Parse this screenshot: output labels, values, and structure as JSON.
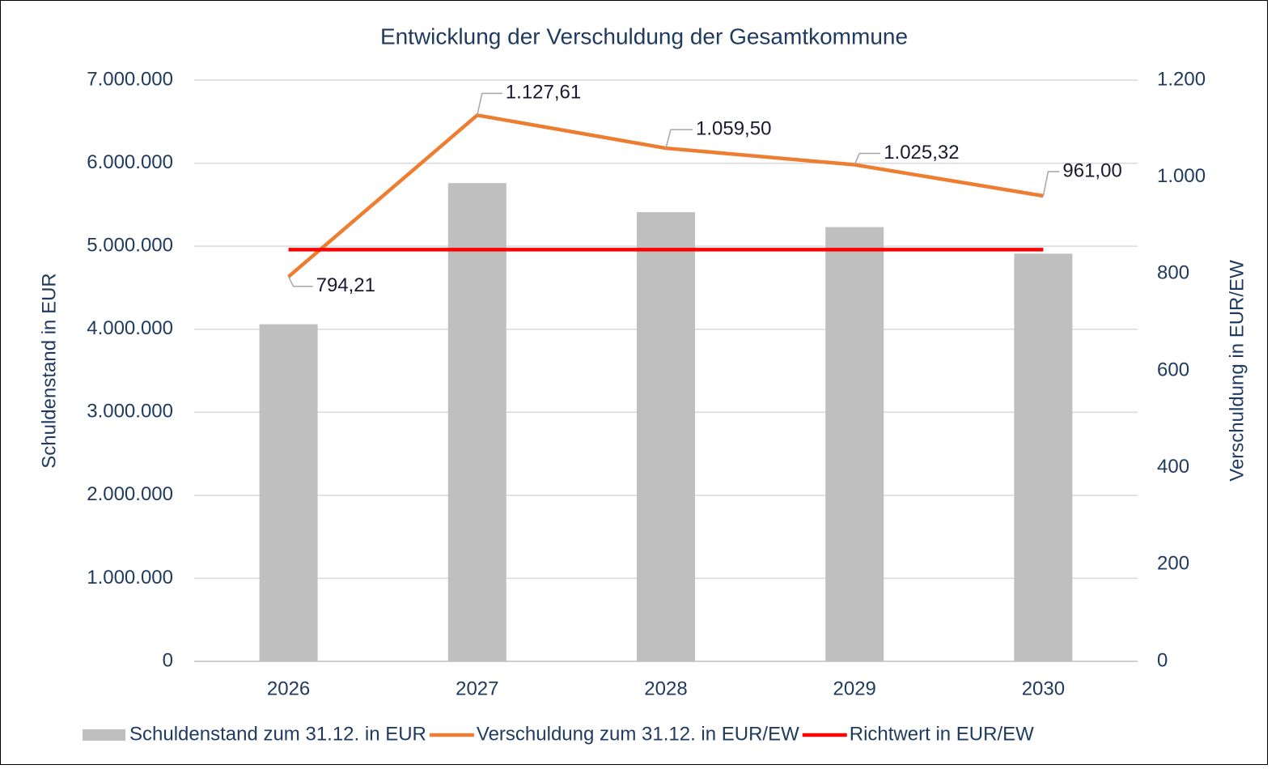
{
  "chart_data": {
    "type": "bar_line",
    "title": "Entwicklung der Verschuldung der Gesamtkommune",
    "ylabel": "Schuldenstand in EUR",
    "y2label": "Verschuldung in EUR/EW",
    "categories": [
      "2026",
      "2027",
      "2028",
      "2029",
      "2030"
    ],
    "series": [
      {
        "name": "Schuldenstand zum 31.12. in EUR",
        "type": "bar",
        "color": "#bfbfbf",
        "axis": "y",
        "values": [
          4060000,
          5760000,
          5410000,
          5230000,
          4910000
        ]
      },
      {
        "name": "Verschuldung zum 31.12. in EUR/EW",
        "type": "line",
        "color": "#ed7d31",
        "axis": "y2",
        "values": [
          794.21,
          1127.61,
          1059.5,
          1025.32,
          961.0
        ],
        "value_labels": [
          "794,21",
          "1.127,61",
          "1.059,50",
          "1.025,32",
          "961,00"
        ]
      },
      {
        "name": "Richtwert in EUR/EW",
        "type": "line",
        "color": "#ff0000",
        "axis": "y2",
        "values": [
          850,
          850,
          850,
          850,
          850
        ]
      }
    ],
    "ylim": [
      0,
      7000000
    ],
    "yticks": [
      0,
      {
        "value": 1000000,
        "label": "1.000.000"
      },
      {
        "value": 2000000,
        "label": "2.000.000"
      },
      {
        "value": 3000000,
        "label": "3.000.000"
      },
      {
        "value": 4000000,
        "label": "4.000.000"
      },
      {
        "value": 5000000,
        "label": "5.000.000"
      },
      {
        "value": 6000000,
        "label": "6.000.000"
      },
      {
        "value": 7000000,
        "label": "7.000.000"
      }
    ],
    "y2lim": [
      0,
      1200
    ],
    "y2ticks": [
      0,
      200,
      400,
      600,
      800,
      {
        "value": 1000,
        "label": "1.000"
      },
      {
        "value": 1200,
        "label": "1.200"
      }
    ],
    "grid": true,
    "legend": "bottom"
  }
}
